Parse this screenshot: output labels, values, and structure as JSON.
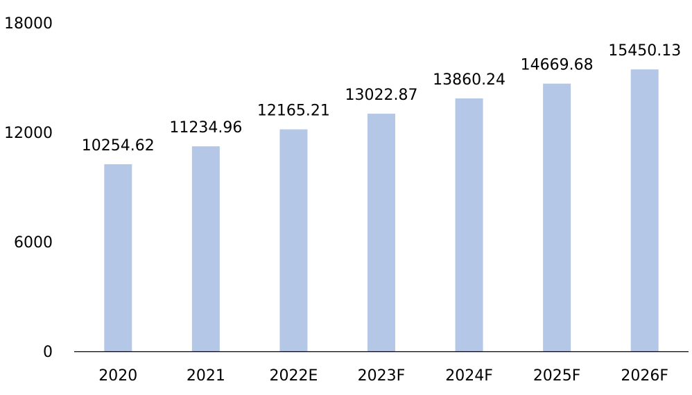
{
  "chart_data": {
    "type": "bar",
    "title": "",
    "xlabel": "",
    "ylabel": "",
    "categories": [
      "2020",
      "2021",
      "2022E",
      "2023F",
      "2024F",
      "2025F",
      "2026F"
    ],
    "values": [
      10254.62,
      11234.96,
      12165.21,
      13022.87,
      13860.24,
      14669.68,
      15450.13
    ],
    "value_labels": [
      "10254.62",
      "11234.96",
      "12165.21",
      "13022.87",
      "13860.24",
      "14669.68",
      "15450.13"
    ],
    "ylim": [
      0,
      18000
    ],
    "yticks": [
      0,
      6000,
      12000,
      18000
    ],
    "ytick_labels": [
      "0",
      "6000",
      "12000",
      "18000"
    ],
    "grid": false,
    "legend": "none",
    "colors": {
      "bar": "#b4c7e7",
      "axis": "#000000",
      "text": "#000000",
      "background": "#ffffff"
    }
  }
}
